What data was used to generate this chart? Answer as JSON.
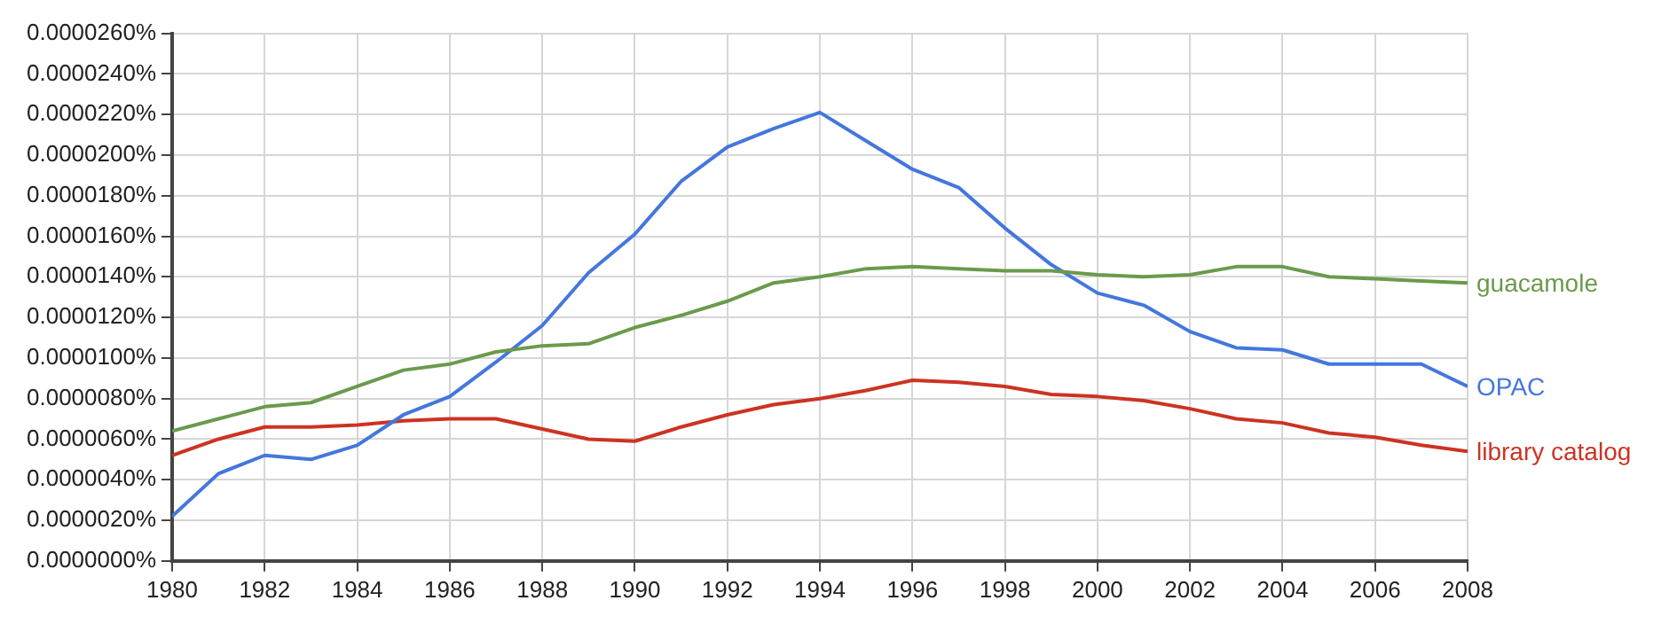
{
  "chart_data": {
    "type": "line",
    "x": [
      1980,
      1981,
      1982,
      1983,
      1984,
      1985,
      1986,
      1987,
      1988,
      1989,
      1990,
      1991,
      1992,
      1993,
      1994,
      1995,
      1996,
      1997,
      1998,
      1999,
      2000,
      2001,
      2002,
      2003,
      2004,
      2005,
      2006,
      2007,
      2008
    ],
    "series": [
      {
        "name": "guacamole",
        "color": "#6b9a4c",
        "values": [
          6.4e-06,
          7e-06,
          7.6e-06,
          7.8e-06,
          8.6e-06,
          9.4e-06,
          9.7e-06,
          1.03e-05,
          1.06e-05,
          1.07e-05,
          1.15e-05,
          1.21e-05,
          1.28e-05,
          1.37e-05,
          1.4e-05,
          1.44e-05,
          1.45e-05,
          1.44e-05,
          1.43e-05,
          1.43e-05,
          1.41e-05,
          1.4e-05,
          1.41e-05,
          1.45e-05,
          1.45e-05,
          1.4e-05,
          1.39e-05,
          1.38e-05,
          1.37e-05
        ]
      },
      {
        "name": "OPAC",
        "color": "#4477dd",
        "values": [
          2.2e-06,
          4.3e-06,
          5.2e-06,
          5e-06,
          5.7e-06,
          7.2e-06,
          8.1e-06,
          9.8e-06,
          1.16e-05,
          1.42e-05,
          1.61e-05,
          1.87e-05,
          2.04e-05,
          2.13e-05,
          2.21e-05,
          2.07e-05,
          1.93e-05,
          1.84e-05,
          1.64e-05,
          1.46e-05,
          1.32e-05,
          1.26e-05,
          1.13e-05,
          1.05e-05,
          1.04e-05,
          9.7e-06,
          9.7e-06,
          9.7e-06,
          8.6e-06
        ]
      },
      {
        "name": "library catalog",
        "color": "#cc3322",
        "values": [
          5.2e-06,
          6e-06,
          6.6e-06,
          6.6e-06,
          6.7e-06,
          6.9e-06,
          7e-06,
          7e-06,
          6.5e-06,
          6e-06,
          5.9e-06,
          6.6e-06,
          7.2e-06,
          7.7e-06,
          8e-06,
          8.4e-06,
          8.9e-06,
          8.8e-06,
          8.6e-06,
          8.2e-06,
          8.1e-06,
          7.9e-06,
          7.5e-06,
          7e-06,
          6.8e-06,
          6.3e-06,
          6.1e-06,
          5.7e-06,
          5.4e-06
        ]
      }
    ],
    "xlim": [
      1980,
      2008
    ],
    "xticks": [
      1980,
      1982,
      1984,
      1986,
      1988,
      1990,
      1992,
      1994,
      1996,
      1998,
      2000,
      2002,
      2004,
      2006,
      2008
    ],
    "ylim": [
      0,
      2.6e-05
    ],
    "yticks": [
      {
        "value": 0,
        "label": "0.0000000%"
      },
      {
        "value": 2e-06,
        "label": "0.0000020%"
      },
      {
        "value": 4e-06,
        "label": "0.0000040%"
      },
      {
        "value": 6e-06,
        "label": "0.0000060%"
      },
      {
        "value": 8e-06,
        "label": "0.0000080%"
      },
      {
        "value": 1e-05,
        "label": "0.0000100%"
      },
      {
        "value": 1.2e-05,
        "label": "0.0000120%"
      },
      {
        "value": 1.4e-05,
        "label": "0.0000140%"
      },
      {
        "value": 1.6e-05,
        "label": "0.0000160%"
      },
      {
        "value": 1.8e-05,
        "label": "0.0000180%"
      },
      {
        "value": 2e-05,
        "label": "0.0000200%"
      },
      {
        "value": 2.2e-05,
        "label": "0.0000220%"
      },
      {
        "value": 2.4e-05,
        "label": "0.0000240%"
      },
      {
        "value": 2.6e-05,
        "label": "0.0000260%"
      }
    ],
    "grid": true,
    "legend": false,
    "marker": "none",
    "line_style": "solid"
  }
}
